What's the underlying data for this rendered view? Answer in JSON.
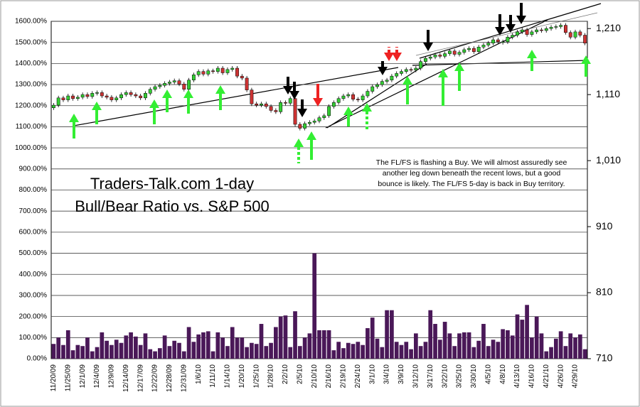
{
  "chart_data": {
    "type": "bar",
    "title": "Traders-Talk.com 1-day Bull/Bear Ratio vs. S&P 500",
    "annotation": "The FL/FS is flashing a Buy. We will almost assuredly see another leg down beneath the recent lows, but a good bounce is likely. The FL/FS 5-day is back in Buy territory.",
    "categories": [
      "11/20/09",
      null,
      null,
      "11/25/09",
      null,
      null,
      "12/1/09",
      null,
      null,
      "12/4/09",
      null,
      null,
      "12/9/09",
      null,
      null,
      "12/14/09",
      null,
      null,
      "12/17/09",
      null,
      null,
      "12/22/09",
      null,
      null,
      "12/28/09",
      null,
      null,
      "12/31/09",
      null,
      null,
      "1/6/10",
      null,
      null,
      "1/11/10",
      null,
      null,
      "1/14/10",
      null,
      null,
      "1/20/10",
      null,
      null,
      "1/25/10",
      null,
      null,
      "1/28/10",
      null,
      null,
      "2/2/10",
      null,
      null,
      "2/5/10",
      null,
      null,
      "2/10/10",
      null,
      null,
      "2/16/10",
      null,
      null,
      "2/19/10",
      null,
      null,
      "2/24/10",
      null,
      null,
      "3/1/10",
      null,
      null,
      "3/4/10",
      null,
      null,
      "3/9/10",
      null,
      null,
      "3/12/10",
      null,
      null,
      "3/17/10",
      null,
      null,
      "3/22/10",
      null,
      null,
      "3/25/10",
      null,
      null,
      "3/30/10",
      null,
      null,
      "4/5/10",
      null,
      null,
      "4/8/10",
      null,
      null,
      "4/13/10",
      null,
      null,
      "4/16/10",
      null,
      null,
      "4/21/10",
      null,
      null,
      "4/26/10",
      null,
      null,
      "4/29/10",
      null,
      null
    ],
    "values": [
      70,
      100,
      65,
      135,
      40,
      65,
      60,
      100,
      35,
      55,
      125,
      85,
      65,
      90,
      75,
      110,
      125,
      105,
      65,
      120,
      45,
      35,
      50,
      110,
      60,
      85,
      75,
      35,
      150,
      80,
      115,
      125,
      130,
      35,
      125,
      100,
      60,
      150,
      100,
      100,
      55,
      75,
      70,
      165,
      60,
      75,
      150,
      200,
      205,
      55,
      225,
      60,
      100,
      120,
      500,
      135,
      135,
      135,
      40,
      80,
      50,
      75,
      70,
      80,
      65,
      145,
      195,
      95,
      55,
      230,
      230,
      80,
      65,
      80,
      45,
      120,
      60,
      80,
      230,
      165,
      90,
      175,
      120,
      60,
      120,
      125,
      125,
      55,
      85,
      165,
      60,
      90,
      80,
      140,
      135,
      110,
      210,
      185,
      255,
      100,
      200,
      120,
      35,
      55,
      95,
      130,
      60,
      120,
      100,
      115,
      45
    ],
    "color": "#4a1858",
    "ylim": [
      0,
      1600
    ],
    "yticks": [
      {
        "value": 0,
        "label": "0.00%"
      },
      {
        "value": 100,
        "label": "100.00%"
      },
      {
        "value": 200,
        "label": "200.00%"
      },
      {
        "value": 300,
        "label": "300.00%"
      },
      {
        "value": 400,
        "label": "400.00%"
      },
      {
        "value": 500,
        "label": "500.00%"
      },
      {
        "value": 600,
        "label": "600.00%"
      },
      {
        "value": 700,
        "label": "700.00%"
      },
      {
        "value": 800,
        "label": "800.00%"
      },
      {
        "value": 900,
        "label": "900.00%"
      },
      {
        "value": 1000,
        "label": "1000.00%"
      },
      {
        "value": 1100,
        "label": "1100.00%"
      },
      {
        "value": 1200,
        "label": "1200.00%"
      },
      {
        "value": 1300,
        "label": "1300.00%"
      },
      {
        "value": 1400,
        "label": "1400.00%"
      },
      {
        "value": 1500,
        "label": "1500.00%"
      },
      {
        "value": 1600,
        "label": "1600.00%"
      }
    ],
    "y2lim": [
      710,
      1221
    ],
    "y2ticks": [
      710,
      810,
      910,
      {
        "value": 1010,
        "label": "1,010"
      },
      {
        "value": 1110,
        "label": "1,110"
      },
      {
        "value": 1210,
        "label": "1,210"
      }
    ],
    "grid": true,
    "candlestick": {
      "type": "candlestick",
      "axis": "y2",
      "up_color": "#33cc33",
      "down_color": "#cc3333",
      "open": [
        1090,
        1094,
        1105,
        1102,
        1108,
        1104,
        1106,
        1110,
        1107,
        1112,
        1113,
        1108,
        1106,
        1102,
        1105,
        1110,
        1113,
        1110,
        1108,
        1105,
        1112,
        1118,
        1122,
        1124,
        1127,
        1129,
        1131,
        1126,
        1118,
        1132,
        1140,
        1145,
        1141,
        1146,
        1145,
        1150,
        1143,
        1148,
        1150,
        1138,
        1135,
        1117,
        1096,
        1094,
        1096,
        1092,
        1086,
        1084,
        1098,
        1097,
        1104,
        1065,
        1059,
        1066,
        1068,
        1070,
        1075,
        1078,
        1092,
        1098,
        1104,
        1108,
        1110,
        1103,
        1102,
        1108,
        1115,
        1122,
        1125,
        1130,
        1132,
        1138,
        1142,
        1145,
        1148,
        1147,
        1150,
        1160,
        1165,
        1167,
        1170,
        1168,
        1172,
        1176,
        1171,
        1174,
        1178,
        1180,
        1175,
        1182,
        1185,
        1188,
        1193,
        1190,
        1190,
        1197,
        1200,
        1205,
        1208,
        1201,
        1205,
        1208,
        1207,
        1210,
        1212,
        1213,
        1215,
        1204,
        1197,
        1205,
        1200
      ],
      "close": [
        1094,
        1105,
        1102,
        1108,
        1104,
        1106,
        1110,
        1107,
        1112,
        1113,
        1108,
        1106,
        1102,
        1105,
        1110,
        1113,
        1110,
        1108,
        1105,
        1112,
        1118,
        1122,
        1124,
        1127,
        1129,
        1131,
        1126,
        1118,
        1132,
        1140,
        1145,
        1141,
        1146,
        1145,
        1150,
        1143,
        1148,
        1150,
        1138,
        1135,
        1117,
        1096,
        1094,
        1096,
        1092,
        1086,
        1084,
        1098,
        1097,
        1104,
        1065,
        1059,
        1066,
        1068,
        1070,
        1075,
        1078,
        1092,
        1098,
        1104,
        1108,
        1110,
        1103,
        1102,
        1108,
        1115,
        1122,
        1125,
        1130,
        1132,
        1138,
        1142,
        1145,
        1148,
        1147,
        1150,
        1160,
        1165,
        1167,
        1170,
        1168,
        1172,
        1176,
        1171,
        1174,
        1178,
        1180,
        1175,
        1182,
        1185,
        1188,
        1193,
        1190,
        1190,
        1197,
        1200,
        1205,
        1208,
        1201,
        1205,
        1208,
        1207,
        1210,
        1212,
        1213,
        1215,
        1204,
        1197,
        1205,
        1200,
        1188
      ]
    }
  }
}
